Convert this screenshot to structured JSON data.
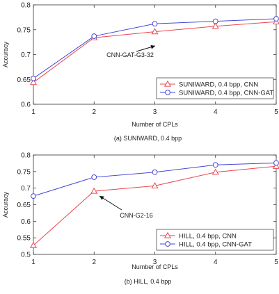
{
  "chart_data": [
    {
      "type": "line",
      "caption": "(a) SUNIWARD, 0.4 bpp",
      "xlabel": "Number of CPLs",
      "ylabel": "Accuracy",
      "x": [
        1,
        2,
        3,
        4,
        5
      ],
      "xlim": [
        1,
        5
      ],
      "ylim": [
        0.6,
        0.8
      ],
      "yticks": [
        0.6,
        0.65,
        0.7,
        0.75,
        0.8
      ],
      "yticklabels": [
        "0.6",
        "0.65",
        "0.7",
        "0.75",
        "0.8"
      ],
      "xticklabels": [
        "1",
        "2",
        "3",
        "4",
        "5"
      ],
      "legend_position": "bottom-right",
      "series": [
        {
          "name": "SUNIWARD, 0.4 bpp, CNN",
          "values": [
            0.644,
            0.734,
            0.746,
            0.757,
            0.766
          ],
          "color": "#e8474e",
          "marker": "triangle"
        },
        {
          "name": "SUNIWARD, 0.4 bpp, CNN-GAT",
          "values": [
            0.652,
            0.737,
            0.762,
            0.767,
            0.772
          ],
          "color": "#4646d8",
          "marker": "circle"
        }
      ],
      "annotation": {
        "text": "CNN-GAT-G3-32",
        "point": [
          3,
          0.762
        ]
      }
    },
    {
      "type": "line",
      "caption": "(b) HILL, 0.4 bpp",
      "xlabel": "Number of CPLs",
      "ylabel": "Accuracy",
      "x": [
        1,
        2,
        3,
        4,
        5
      ],
      "xlim": [
        1,
        5
      ],
      "ylim": [
        0.5,
        0.8
      ],
      "yticks": [
        0.5,
        0.55,
        0.6,
        0.65,
        0.7,
        0.75,
        0.8
      ],
      "yticklabels": [
        "0.5",
        "0.55",
        "0.6",
        "0.65",
        "0.7",
        "0.75",
        "0.8"
      ],
      "xticklabels": [
        "1",
        "2",
        "3",
        "4",
        "5"
      ],
      "legend_position": "bottom-right",
      "series": [
        {
          "name": "HILL, 0.4 bpp, CNN",
          "values": [
            0.527,
            0.691,
            0.707,
            0.748,
            0.766
          ],
          "color": "#e8474e",
          "marker": "triangle"
        },
        {
          "name": "HILL, 0.4 bpp, CNN-GAT",
          "values": [
            0.676,
            0.733,
            0.748,
            0.77,
            0.776
          ],
          "color": "#4646d8",
          "marker": "circle"
        }
      ],
      "annotation": {
        "text": "CNN-G2-16",
        "point": [
          2,
          0.691
        ]
      }
    }
  ]
}
